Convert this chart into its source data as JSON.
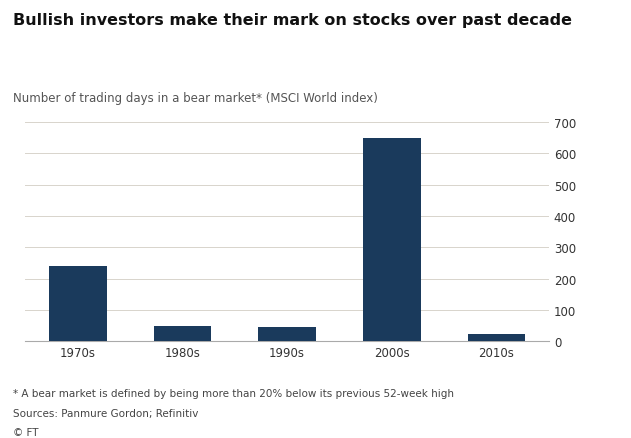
{
  "categories": [
    "1970s",
    "1980s",
    "1990s",
    "2000s",
    "2010s"
  ],
  "values": [
    240,
    50,
    45,
    650,
    25
  ],
  "bar_color": "#1a3a5c",
  "title": "Bullish investors make their mark on stocks over past decade",
  "subtitle": "Number of trading days in a bear market* (MSCI World index)",
  "footnote1": "* A bear market is defined by being more than 20% below its previous 52-week high",
  "footnote2": "Sources: Panmure Gordon; Refinitiv",
  "footnote3": "© FT",
  "ylim": [
    0,
    700
  ],
  "yticks": [
    0,
    100,
    200,
    300,
    400,
    500,
    600,
    700
  ],
  "title_fontsize": 11.5,
  "subtitle_fontsize": 8.5,
  "tick_fontsize": 8.5,
  "footnote_fontsize": 7.5,
  "background_color": "#ffffff",
  "grid_color": "#d8d4cc",
  "bar_width": 0.55
}
